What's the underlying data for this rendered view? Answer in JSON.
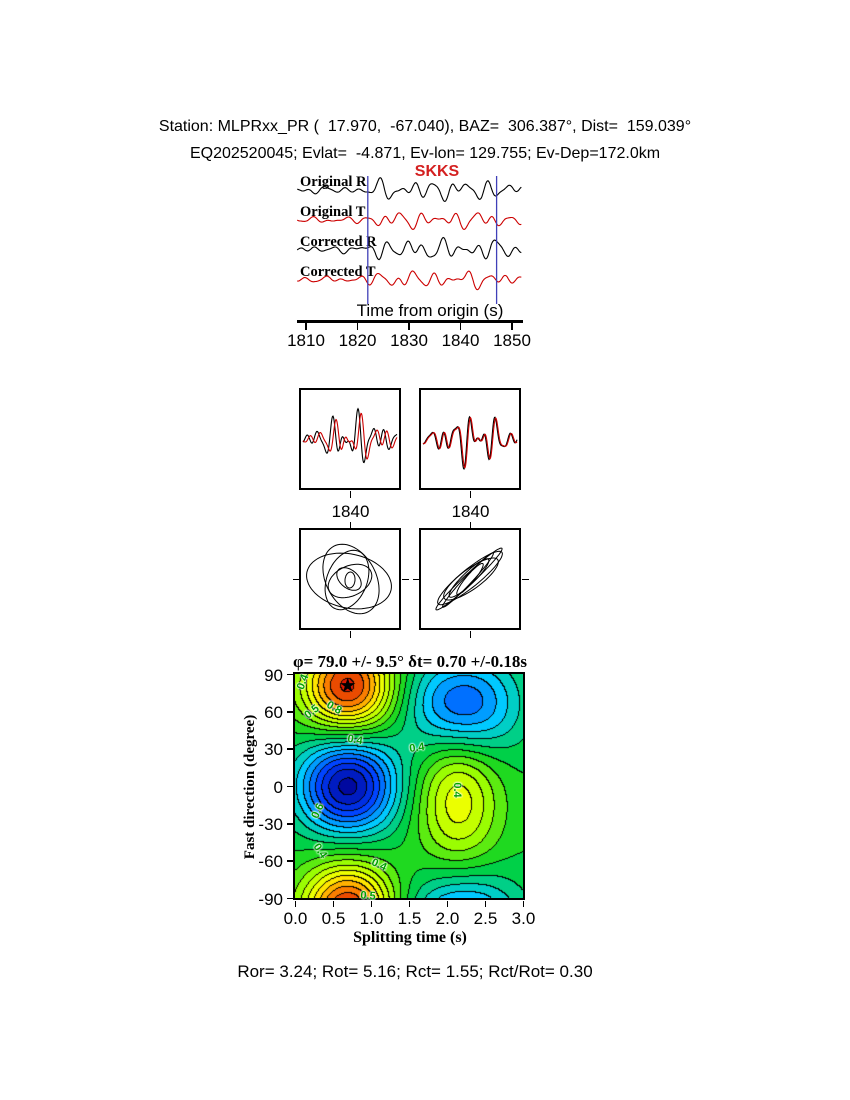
{
  "header": {
    "line1": "Station: MLPRxx_PR (  17.970,  -67.040), BAZ=  306.387°, Dist=  159.039°",
    "line2": "EQ202520045; Evlat=  -4.871, Ev-lon= 129.755; Ev-Dep=172.0km"
  },
  "chart_data": [
    {
      "id": "seismogram-traces",
      "type": "line",
      "phase_label": "SKKS",
      "xlabel": "Time from origin (s)",
      "xlim": [
        1808,
        1852
      ],
      "xticks": [
        1810,
        1820,
        1830,
        1840,
        1850
      ],
      "analysis_window_s": [
        1822,
        1847
      ],
      "window_color": "#4040b8",
      "traces": [
        {
          "label": "Original R",
          "color": "#000000"
        },
        {
          "label": "Original T",
          "color": "#cc0000"
        },
        {
          "label": "Corrected R",
          "color": "#000000"
        },
        {
          "label": "Corrected T",
          "color": "#cc0000"
        }
      ]
    },
    {
      "id": "windowed-waveforms",
      "type": "line",
      "panels": [
        {
          "tick_label": "1840"
        },
        {
          "tick_label": "1840"
        }
      ],
      "colors": [
        "#000000",
        "#cc0000"
      ]
    },
    {
      "id": "particle-motion",
      "type": "line",
      "panels": [
        {
          "motion": "elliptical"
        },
        {
          "motion": "linear-diagonal"
        }
      ]
    },
    {
      "id": "splitting-misfit-map",
      "type": "heatmap",
      "title": "φ= 79.0 +/- 9.5° δt= 0.70 +/-0.18s",
      "xlabel": "Splitting time (s)",
      "ylabel": "Fast direction (degree)",
      "xlim": [
        0.0,
        3.0
      ],
      "ylim": [
        -90,
        90
      ],
      "xticks": [
        "0.0",
        "0.5",
        "1.0",
        "1.5",
        "2.0",
        "2.5",
        "3.0"
      ],
      "yticks": [
        "90",
        "60",
        "30",
        "0",
        "-30",
        "-60",
        "-90"
      ],
      "best_fit": {
        "fast_direction_deg": 79.0,
        "fast_direction_err_deg": 9.5,
        "split_time_s": 0.7,
        "split_time_err_s": 0.18
      },
      "star": {
        "x": 0.7,
        "y": 79,
        "glyph": "★"
      },
      "level_step": 0.05,
      "background_level": 0.5,
      "features": [
        {
          "x": 0.7,
          "y": 80,
          "sx": 0.42,
          "sy": 26,
          "amp": 0.47
        },
        {
          "x": 0.7,
          "y": 0,
          "sx": 0.45,
          "sy": 27,
          "amp": -0.47
        },
        {
          "x": 2.2,
          "y": 65,
          "sx": 0.5,
          "sy": 30,
          "amp": -0.34
        },
        {
          "x": 2.15,
          "y": -8,
          "sx": 0.38,
          "sy": 42,
          "amp": 0.24
        }
      ],
      "contour_labels": [
        {
          "text": "0.4",
          "x": 0.1,
          "y": 84,
          "rot": -70
        },
        {
          "text": "0.5",
          "x": 0.22,
          "y": 60,
          "rot": -38
        },
        {
          "text": "0.8",
          "x": 0.5,
          "y": 63,
          "rot": 30
        },
        {
          "text": "0.4",
          "x": 0.78,
          "y": 37,
          "rot": 10
        },
        {
          "text": "0.4",
          "x": 1.6,
          "y": 31,
          "rot": -8
        },
        {
          "text": "0.6",
          "x": 0.3,
          "y": -20,
          "rot": -65
        },
        {
          "text": "0.4",
          "x": 0.32,
          "y": -52,
          "rot": 55
        },
        {
          "text": "0.4",
          "x": 1.1,
          "y": -63,
          "rot": 25
        },
        {
          "text": "0.4",
          "x": 2.12,
          "y": -3,
          "rot": 90
        },
        {
          "text": "0.5",
          "x": 0.95,
          "y": -88,
          "rot": 5
        }
      ],
      "colormap": [
        "#000090",
        "#0040ff",
        "#00cdff",
        "#00d028",
        "#a0ff00",
        "#ffff00",
        "#ff8c00",
        "#d20000"
      ],
      "contour_color": "#000000"
    }
  ],
  "footer": {
    "stats": "Ror= 3.24; Rot= 5.16; Rct= 1.55; Rct/Rot= 0.30"
  }
}
